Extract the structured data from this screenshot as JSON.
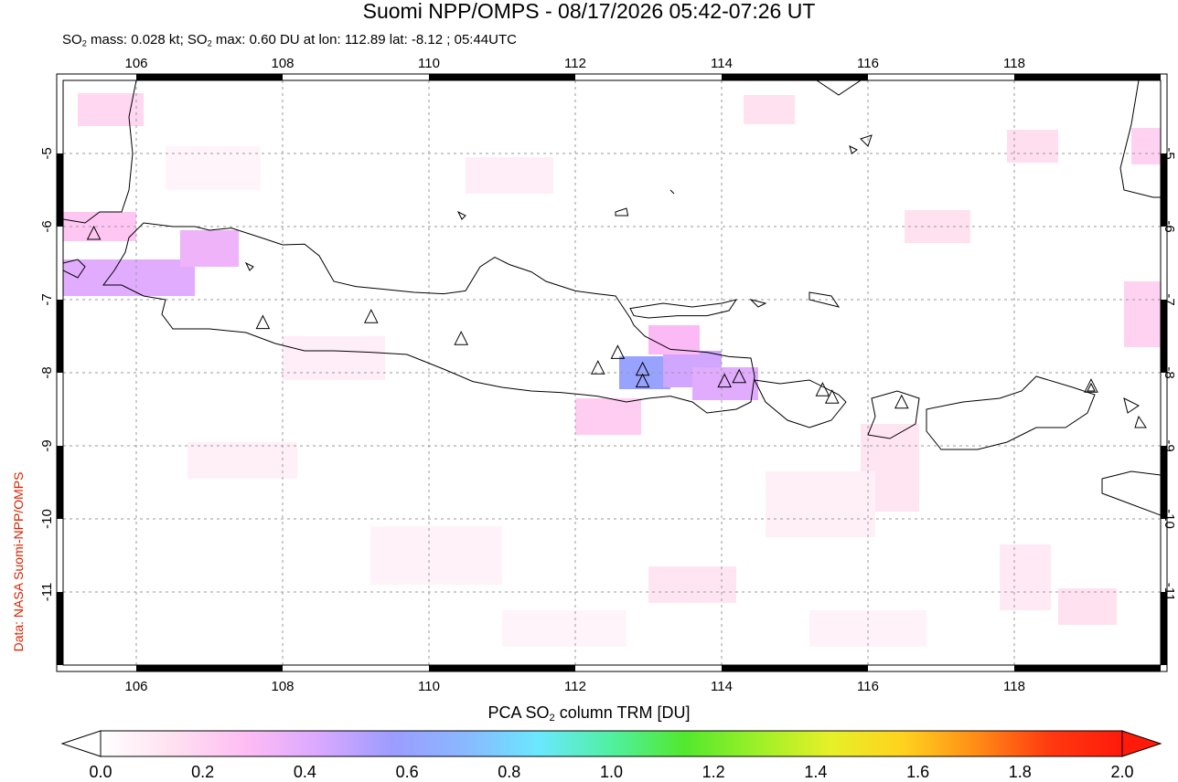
{
  "header": {
    "title": "Suomi NPP/OMPS - 08/17/2026 05:42-07:26 UT",
    "subtitle_parts": [
      "SO",
      "2",
      " mass: 0.028 kt; SO",
      "2",
      " max: 0.60 DU at lon: 112.89 lat: -8.12 ; 05:44UTC"
    ]
  },
  "credit": "Data: NASA Suomi-NPP/OMPS",
  "map": {
    "lon_range": [
      105.0,
      120.0
    ],
    "lat_range": [
      -12.0,
      -4.0
    ],
    "lon_ticks": [
      "106",
      "108",
      "110",
      "112",
      "114",
      "116",
      "118"
    ],
    "lat_ticks": [
      "-5",
      "-6",
      "-7",
      "-8",
      "-9",
      "-10",
      "-11"
    ],
    "grid": "dashed",
    "volcano_marker": "triangle-icon",
    "volcanoes": [
      {
        "lon": 105.42,
        "lat": -6.1
      },
      {
        "lon": 107.73,
        "lat": -7.32
      },
      {
        "lon": 109.21,
        "lat": -7.24
      },
      {
        "lon": 110.44,
        "lat": -7.54
      },
      {
        "lon": 112.31,
        "lat": -7.94
      },
      {
        "lon": 112.58,
        "lat": -7.73
      },
      {
        "lon": 112.92,
        "lat": -7.96
      },
      {
        "lon": 112.92,
        "lat": -8.12
      },
      {
        "lon": 114.04,
        "lat": -8.12
      },
      {
        "lon": 114.24,
        "lat": -8.06
      },
      {
        "lon": 115.38,
        "lat": -8.24
      },
      {
        "lon": 115.51,
        "lat": -8.34
      },
      {
        "lon": 116.46,
        "lat": -8.41
      },
      {
        "lon": 119.05,
        "lat": -8.19
      }
    ],
    "so2_cells": [
      {
        "lon": 112.6,
        "lat": -8.0,
        "w": 0.7,
        "h": 0.45,
        "value": 0.6
      },
      {
        "lon": 113.2,
        "lat": -7.95,
        "w": 0.8,
        "h": 0.5,
        "value": 0.45
      },
      {
        "lon": 113.6,
        "lat": -8.15,
        "w": 0.9,
        "h": 0.45,
        "value": 0.4
      },
      {
        "lon": 113.0,
        "lat": -7.55,
        "w": 0.7,
        "h": 0.4,
        "value": 0.3
      },
      {
        "lon": 105.0,
        "lat": -6.7,
        "w": 1.8,
        "h": 0.5,
        "value": 0.4
      },
      {
        "lon": 106.6,
        "lat": -6.3,
        "w": 0.8,
        "h": 0.5,
        "value": 0.35
      },
      {
        "lon": 105.0,
        "lat": -6.0,
        "w": 1.0,
        "h": 0.4,
        "value": 0.25
      },
      {
        "lon": 112.0,
        "lat": -8.6,
        "w": 0.9,
        "h": 0.5,
        "value": 0.22
      },
      {
        "lon": 105.2,
        "lat": -4.4,
        "w": 0.9,
        "h": 0.45,
        "value": 0.18
      },
      {
        "lon": 119.5,
        "lat": -7.2,
        "w": 0.5,
        "h": 0.9,
        "value": 0.2
      },
      {
        "lon": 119.6,
        "lat": -4.9,
        "w": 0.4,
        "h": 0.5,
        "value": 0.2
      },
      {
        "lon": 117.9,
        "lat": -4.9,
        "w": 0.7,
        "h": 0.45,
        "value": 0.15
      },
      {
        "lon": 114.3,
        "lat": -4.4,
        "w": 0.7,
        "h": 0.4,
        "value": 0.14
      },
      {
        "lon": 116.5,
        "lat": -6.0,
        "w": 0.9,
        "h": 0.45,
        "value": 0.14
      },
      {
        "lon": 113.0,
        "lat": -10.9,
        "w": 1.2,
        "h": 0.5,
        "value": 0.12
      },
      {
        "lon": 118.6,
        "lat": -11.2,
        "w": 0.8,
        "h": 0.5,
        "value": 0.14
      },
      {
        "lon": 115.9,
        "lat": -9.3,
        "w": 0.8,
        "h": 1.2,
        "value": 0.12
      },
      {
        "lon": 117.8,
        "lat": -10.8,
        "w": 0.7,
        "h": 0.9,
        "value": 0.1
      },
      {
        "lon": 108.0,
        "lat": -7.8,
        "w": 1.4,
        "h": 0.6,
        "value": 0.08
      },
      {
        "lon": 110.5,
        "lat": -5.3,
        "w": 1.2,
        "h": 0.5,
        "value": 0.08
      },
      {
        "lon": 106.7,
        "lat": -9.2,
        "w": 1.5,
        "h": 0.5,
        "value": 0.07
      },
      {
        "lon": 109.2,
        "lat": -10.5,
        "w": 1.8,
        "h": 0.8,
        "value": 0.06
      },
      {
        "lon": 114.6,
        "lat": -9.8,
        "w": 1.5,
        "h": 0.9,
        "value": 0.07
      },
      {
        "lon": 111.0,
        "lat": -11.5,
        "w": 1.7,
        "h": 0.5,
        "value": 0.05
      },
      {
        "lon": 106.4,
        "lat": -5.2,
        "w": 1.3,
        "h": 0.6,
        "value": 0.05
      },
      {
        "lon": 115.2,
        "lat": -11.5,
        "w": 1.6,
        "h": 0.5,
        "value": 0.06
      }
    ]
  },
  "colorbar": {
    "title_parts": [
      "PCA SO",
      "2",
      " column TRM [DU]"
    ],
    "range": [
      0.0,
      2.0
    ],
    "labels": [
      "0.0",
      "0.2",
      "0.4",
      "0.6",
      "0.8",
      "1.0",
      "1.2",
      "1.4",
      "1.6",
      "1.8",
      "2.0"
    ],
    "colors": [
      "#ffffff",
      "#ffe0f0",
      "#ffbcf4",
      "#d9a8ff",
      "#9c9cff",
      "#8ab8ff",
      "#6ae8ff",
      "#50f0a0",
      "#52e82e",
      "#9cf028",
      "#e6f028",
      "#ffd21e",
      "#ff8c16",
      "#ff3a10",
      "#ff1a0a"
    ]
  }
}
